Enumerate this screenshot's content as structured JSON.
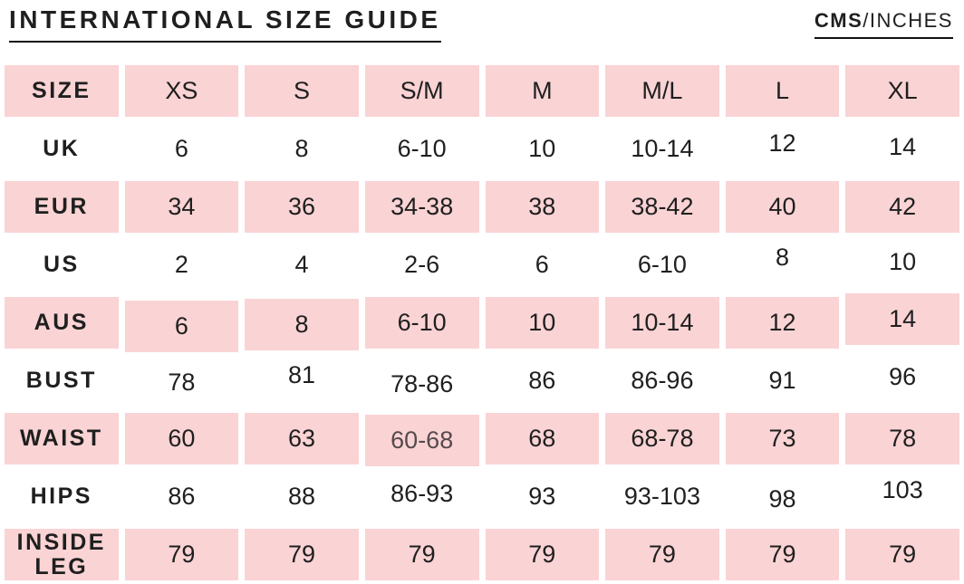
{
  "header": {
    "units_bold": "CMS",
    "units_regular": "/INCHES"
  },
  "chart_data": {
    "type": "table",
    "title": "INTERNATIONAL SIZE GUIDE",
    "units": "CMS/INCHES",
    "columns": [
      "SIZE",
      "XS",
      "S",
      "S/M",
      "M",
      "M/L",
      "L",
      "XL"
    ],
    "rows": [
      {
        "label": "UK",
        "cells": [
          "6",
          "8",
          "6-10",
          "10",
          "10-14",
          "12",
          "14"
        ]
      },
      {
        "label": "EUR",
        "cells": [
          "34",
          "36",
          "34-38",
          "38",
          "38-42",
          "40",
          "42"
        ]
      },
      {
        "label": "US",
        "cells": [
          "2",
          "4",
          "2-6",
          "6",
          "6-10",
          "8",
          "10"
        ]
      },
      {
        "label": "AUS",
        "cells": [
          "6",
          "8",
          "6-10",
          "10",
          "10-14",
          "12",
          "14"
        ]
      },
      {
        "label": "BUST",
        "cells": [
          "78",
          "81",
          "78-86",
          "86",
          "86-96",
          "91",
          "96"
        ]
      },
      {
        "label": "WAIST",
        "cells": [
          "60",
          "63",
          "60-68",
          "68",
          "68-78",
          "73",
          "78"
        ]
      },
      {
        "label": "HIPS",
        "cells": [
          "86",
          "88",
          "86-93",
          "93",
          "93-103",
          "98",
          "103"
        ]
      },
      {
        "label": "INSIDE LEG",
        "cells": [
          "79",
          "79",
          "79",
          "79",
          "79",
          "79",
          "79"
        ]
      }
    ]
  },
  "colors": {
    "row_pink": "#fad3d4",
    "text": "#1f1f1f"
  }
}
